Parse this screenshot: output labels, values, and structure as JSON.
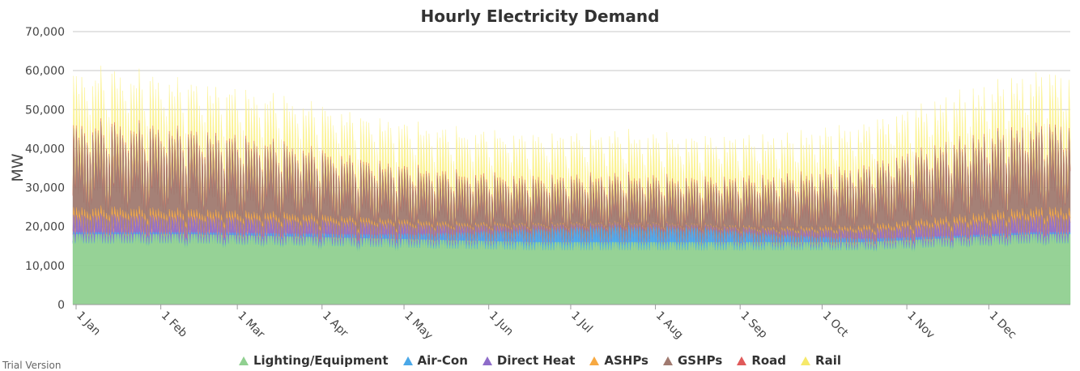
{
  "chart_data": {
    "type": "area",
    "stacked": true,
    "title": "Hourly Electricity Demand",
    "ylabel": "MW",
    "xlabel": "",
    "ylim": [
      0,
      70000
    ],
    "yticks": [
      "0",
      "10,000",
      "20,000",
      "30,000",
      "40,000",
      "50,000",
      "60,000",
      "70,000"
    ],
    "xticks": [
      "1 Jan",
      "1 Feb",
      "1 Mar",
      "1 Apr",
      "1 May",
      "1 Jun",
      "1 Jul",
      "1 Aug",
      "1 Sep",
      "1 Oct",
      "1 Nov",
      "1 Dec"
    ],
    "x_resolution": "hourly",
    "grid": true,
    "legend_position": "bottom",
    "series": [
      {
        "name": "Lighting/Equipment",
        "color": "#90d090",
        "monthly_typical": [
          18000,
          18000,
          17500,
          17000,
          16500,
          16000,
          16000,
          16000,
          16000,
          16000,
          17000,
          18000
        ]
      },
      {
        "name": "Air-Con",
        "color": "#4aa8e8",
        "monthly_typical": [
          500,
          500,
          700,
          900,
          1500,
          2500,
          3000,
          2800,
          1500,
          800,
          500,
          500
        ]
      },
      {
        "name": "Direct Heat",
        "color": "#8e6cc9",
        "monthly_typical": [
          3500,
          3300,
          3000,
          2500,
          1500,
          800,
          600,
          600,
          1000,
          1800,
          2800,
          3500
        ]
      },
      {
        "name": "ASHPs",
        "color": "#f7a941",
        "monthly_typical": [
          1500,
          1400,
          1200,
          900,
          600,
          300,
          200,
          200,
          400,
          800,
          1200,
          1500
        ]
      },
      {
        "name": "GSHPs",
        "color": "#a07a70",
        "monthly_typical": [
          16000,
          15500,
          13500,
          11000,
          9000,
          8000,
          8000,
          8000,
          9000,
          11000,
          14500,
          16000
        ]
      },
      {
        "name": "Road",
        "color": "#e05a5a",
        "monthly_typical": [
          600,
          600,
          600,
          600,
          600,
          600,
          600,
          600,
          600,
          600,
          600,
          600
        ]
      },
      {
        "name": "Rail",
        "color": "#fbf18a",
        "monthly_typical": [
          10000,
          9500,
          9000,
          8500,
          8000,
          7500,
          7500,
          7500,
          7500,
          8000,
          9000,
          10000
        ]
      }
    ],
    "peak_daily_total": [
      62000,
      58000,
      55000,
      50000,
      48000,
      47000,
      48000,
      46000,
      46000,
      48000,
      54000,
      60000
    ]
  },
  "footer": {
    "watermark": "Trial Version"
  }
}
